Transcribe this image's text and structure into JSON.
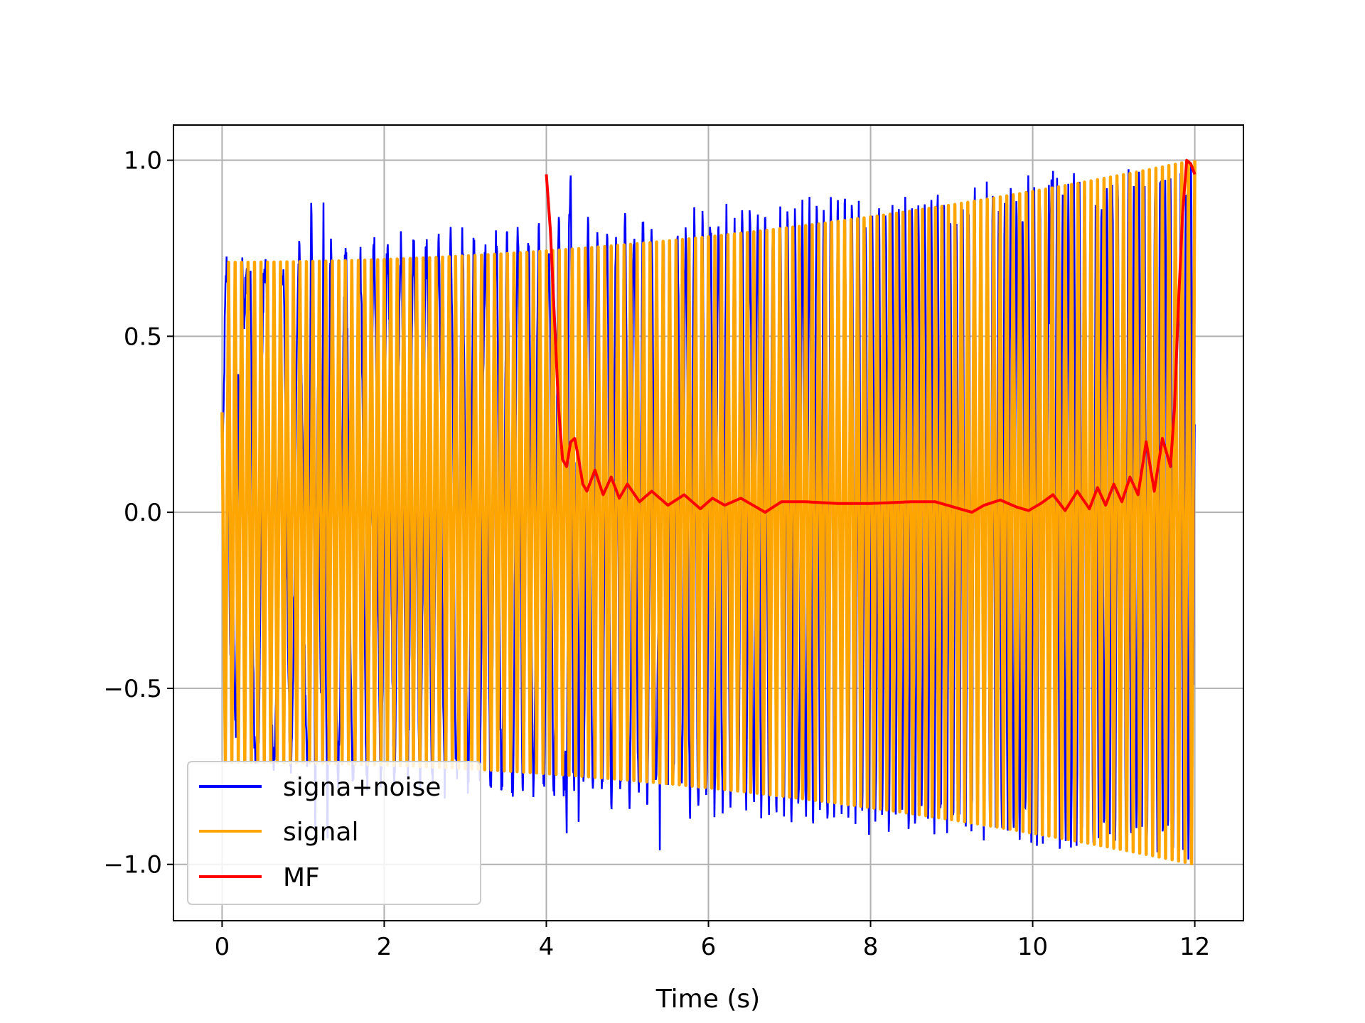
{
  "chart_data": {
    "type": "line",
    "title": "",
    "xlabel": "Time (s)",
    "ylabel": "",
    "xlim": [
      -0.6,
      12.6
    ],
    "ylim": [
      -1.16,
      1.1
    ],
    "xticks": [
      0,
      2,
      4,
      6,
      8,
      10,
      12
    ],
    "xtick_labels": [
      "0",
      "2",
      "4",
      "6",
      "8",
      "10",
      "12"
    ],
    "yticks": [
      1.0,
      0.5,
      0.0,
      -0.5,
      -1.0
    ],
    "ytick_labels": [
      "1.0",
      "0.5",
      "0.0",
      "−0.5",
      "−1.0"
    ],
    "grid": true,
    "legend_position": "lower-left",
    "series": [
      {
        "name": "signa+noise",
        "color": "#0000ff",
        "description": "noisy chirp, duration 0-12 s",
        "x": [
          0,
          0.1,
          0.2,
          0.25,
          0.35,
          0.45,
          1.1,
          1.15,
          1.25,
          1.3,
          4.25,
          4.3,
          4.4,
          5.4,
          5.45,
          5.5,
          10.2,
          10.25,
          12.0
        ],
        "y": [
          0.23,
          -0.45,
          0.45,
          0.74,
          0.7,
          -0.68,
          0.93,
          -0.98,
          0.92,
          -0.99,
          -0.94,
          1.0,
          -0.97,
          -0.96,
          0.8,
          -0.85,
          0.93,
          1.0,
          0.25
        ]
      },
      {
        "name": "signal",
        "color": "#ffa500",
        "description": "chirp with amplitude envelope",
        "t_range": [
          0,
          12
        ],
        "amplitude_start": 0.71,
        "amplitude_end": 1.0,
        "cycles": 150
      },
      {
        "name": "MF",
        "color": "#ff0000",
        "x": [
          4.0,
          4.05,
          4.1,
          4.15,
          4.2,
          4.25,
          4.3,
          4.35,
          4.4,
          4.45,
          4.5,
          4.6,
          4.7,
          4.8,
          4.9,
          5.0,
          5.15,
          5.3,
          5.5,
          5.7,
          5.9,
          6.05,
          6.2,
          6.4,
          6.55,
          6.7,
          6.9,
          7.2,
          7.6,
          8.0,
          8.5,
          8.8,
          9.1,
          9.25,
          9.4,
          9.6,
          9.8,
          9.95,
          10.1,
          10.25,
          10.4,
          10.55,
          10.7,
          10.8,
          10.9,
          11.0,
          11.1,
          11.2,
          11.3,
          11.4,
          11.5,
          11.6,
          11.7,
          11.75,
          11.8,
          11.85,
          11.9,
          11.95,
          12.0
        ],
        "y": [
          0.96,
          0.8,
          0.55,
          0.3,
          0.15,
          0.13,
          0.2,
          0.21,
          0.15,
          0.08,
          0.06,
          0.12,
          0.05,
          0.1,
          0.04,
          0.08,
          0.03,
          0.06,
          0.02,
          0.05,
          0.01,
          0.04,
          0.02,
          0.04,
          0.02,
          0.0,
          0.03,
          0.03,
          0.025,
          0.025,
          0.03,
          0.03,
          0.01,
          0.0,
          0.02,
          0.035,
          0.015,
          0.005,
          0.025,
          0.05,
          0.005,
          0.06,
          0.01,
          0.07,
          0.02,
          0.08,
          0.03,
          0.1,
          0.05,
          0.2,
          0.06,
          0.21,
          0.13,
          0.3,
          0.6,
          0.85,
          1.0,
          0.99,
          0.96
        ]
      }
    ]
  }
}
